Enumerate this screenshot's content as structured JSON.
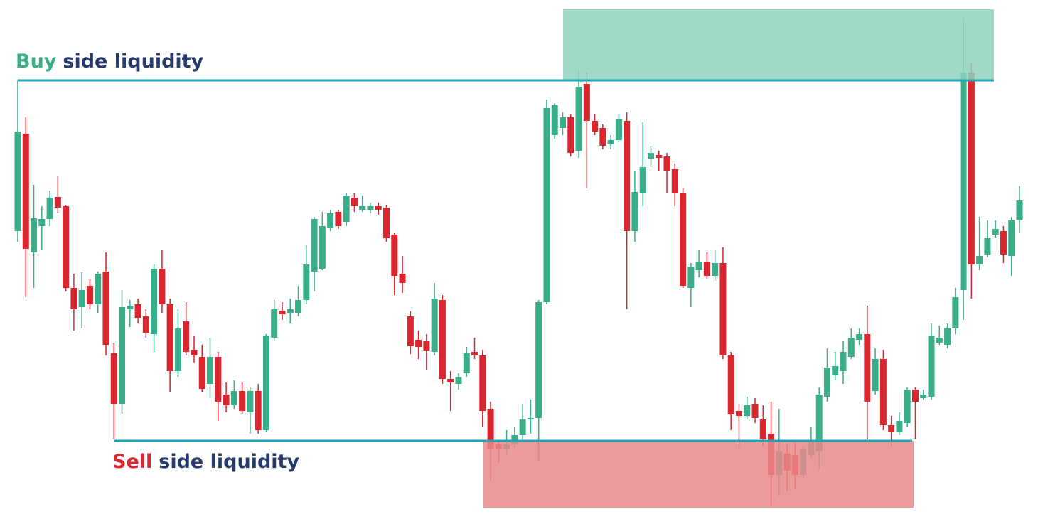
{
  "chart_data": {
    "type": "candlestick",
    "ylim": [
      0,
      730
    ],
    "up_color": "#3aae8a",
    "down_color": "#d9262f",
    "open": [
      405,
      542,
      375,
      412,
      422,
      453,
      440,
      325,
      298,
      328,
      302,
      348,
      233,
      162,
      295,
      302,
      285,
      260,
      352,
      302,
      208,
      278,
      238,
      228,
      190,
      228,
      175,
      160,
      180,
      150,
      180,
      125,
      255,
      293,
      290,
      290,
      308,
      348,
      352,
      410,
      432,
      418,
      452,
      435,
      435,
      440,
      438,
      400,
      345,
      285,
      252,
      250,
      235,
      308,
      197,
      190,
      205,
      235,
      230,
      155,
      105,
      98,
      105,
      118,
      140,
      142,
      305,
      540,
      550,
      565,
      518,
      612,
      560,
      550,
      527,
      533,
      560,
      405,
      458,
      507,
      512,
      510,
      492,
      458,
      325,
      350,
      362,
      342,
      360,
      230,
      152,
      145,
      162,
      140,
      120,
      62,
      92,
      90,
      62,
      90,
      95,
      172,
      202,
      208,
      228,
      252,
      260,
      180,
      225,
      132,
      122,
      135,
      182,
      170,
      172,
      248,
      245,
      268,
      322,
      628,
      358,
      372,
      400,
      405,
      370,
      420
    ],
    "high": [
      617,
      565,
      470,
      440,
      462,
      482,
      442,
      345,
      347,
      337,
      348,
      375,
      248,
      322,
      308,
      310,
      295,
      358,
      378,
      310,
      295,
      305,
      258,
      245,
      255,
      235,
      192,
      195,
      192,
      185,
      190,
      260,
      308,
      305,
      310,
      328,
      385,
      425,
      432,
      435,
      435,
      458,
      458,
      455,
      445,
      445,
      442,
      402,
      370,
      292,
      265,
      260,
      332,
      315,
      208,
      205,
      242,
      255,
      238,
      165,
      110,
      125,
      130,
      162,
      168,
      308,
      590,
      585,
      572,
      570,
      630,
      628,
      570,
      555,
      540,
      570,
      572,
      490,
      558,
      525,
      518,
      515,
      500,
      465,
      360,
      378,
      375,
      378,
      382,
      235,
      162,
      172,
      170,
      160,
      165,
      155,
      105,
      110,
      102,
      130,
      185,
      240,
      235,
      250,
      268,
      268,
      300,
      240,
      238,
      145,
      150,
      185,
      185,
      182,
      275,
      272,
      275,
      325,
      705,
      642,
      425,
      420,
      420,
      412,
      425,
      468
    ],
    "low": [
      390,
      312,
      325,
      378,
      412,
      430,
      320,
      265,
      268,
      295,
      290,
      230,
      112,
      148,
      270,
      275,
      255,
      235,
      290,
      178,
      200,
      230,
      220,
      178,
      170,
      138,
      150,
      155,
      148,
      120,
      120,
      122,
      250,
      280,
      275,
      285,
      302,
      320,
      350,
      405,
      408,
      412,
      432,
      432,
      430,
      428,
      390,
      315,
      318,
      232,
      225,
      210,
      230,
      190,
      152,
      182,
      200,
      225,
      130,
      55,
      80,
      90,
      100,
      110,
      120,
      82,
      302,
      535,
      540,
      510,
      508,
      465,
      540,
      520,
      520,
      530,
      295,
      390,
      440,
      495,
      490,
      458,
      440,
      325,
      298,
      340,
      338,
      335,
      225,
      125,
      98,
      140,
      135,
      102,
      18,
      32,
      40,
      42,
      58,
      85,
      70,
      165,
      195,
      190,
      225,
      245,
      112,
      175,
      125,
      102,
      118,
      130,
      112,
      168,
      168,
      245,
      240,
      260,
      280,
      310,
      350,
      368,
      395,
      360,
      342,
      402
    ],
    "close": [
      545,
      380,
      423,
      422,
      452,
      438,
      325,
      295,
      322,
      302,
      345,
      245,
      162,
      298,
      300,
      283,
      262,
      352,
      302,
      208,
      268,
      235,
      230,
      183,
      228,
      165,
      160,
      180,
      152,
      180,
      125,
      258,
      295,
      288,
      295,
      308,
      358,
      422,
      412,
      430,
      412,
      455,
      440,
      440,
      440,
      435,
      395,
      342,
      332,
      243,
      242,
      237,
      310,
      197,
      192,
      200,
      233,
      230,
      152,
      98,
      98,
      105,
      118,
      140,
      142,
      305,
      578,
      582,
      565,
      515,
      608,
      560,
      545,
      525,
      533,
      562,
      405,
      460,
      495,
      515,
      508,
      490,
      458,
      328,
      355,
      362,
      342,
      360,
      230,
      147,
      145,
      160,
      142,
      112,
      62,
      95,
      68,
      62,
      98,
      110,
      175,
      213,
      215,
      235,
      255,
      260,
      165,
      225,
      132,
      122,
      138,
      182,
      165,
      175,
      258,
      255,
      268,
      312,
      628,
      358,
      370,
      395,
      408,
      372,
      420,
      448
    ],
    "levels": [
      {
        "highlight": "Buy",
        "text": "side liquidity",
        "highlight_color": "#3aae8a",
        "value": 617
      },
      {
        "highlight": "Sell",
        "text": "side liquidity",
        "highlight_color": "#d9262f",
        "value": 110
      }
    ],
    "level_color": "#1aa7b5",
    "label_color": "#283a6b",
    "zones": [
      {
        "low": 617,
        "high": 717,
        "color": "#8fd4bc"
      },
      {
        "low": 16,
        "high": 110,
        "color": "#e98989"
      }
    ]
  }
}
